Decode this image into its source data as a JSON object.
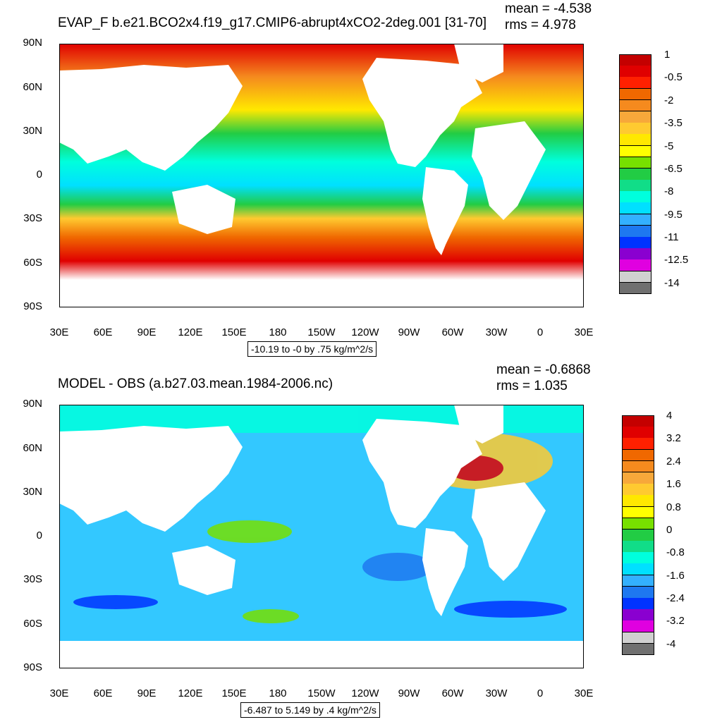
{
  "panels": [
    {
      "title": "EVAP_F b.e21.BCO2x4.f19_g17.CMIP6-abrupt4xCO2-2deg.001 [31-70]",
      "mean": "mean = -4.538",
      "rms": "rms = 4.978",
      "range_note": "-10.19 to -0 by .75 kg/m^2/s",
      "lat_ticks": [
        "90N",
        "60N",
        "30N",
        "0",
        "30S",
        "60S",
        "90S"
      ],
      "lon_ticks": [
        "30E",
        "60E",
        "90E",
        "120E",
        "150E",
        "180",
        "150W",
        "120W",
        "90W",
        "60W",
        "30W",
        "0",
        "30E"
      ],
      "colorbar_labels": [
        "1",
        "-0.5",
        "-2",
        "-3.5",
        "-5",
        "-6.5",
        "-8",
        "-9.5",
        "-11",
        "-12.5",
        "-14"
      ],
      "colorbar_colors": [
        "#c40000",
        "#e00000",
        "#ff2000",
        "#f06800",
        "#f58a1e",
        "#f7a83a",
        "#ffca30",
        "#ffe800",
        "#ffff00",
        "#77e000",
        "#22cc44",
        "#11dd88",
        "#00ffdd",
        "#00e0ff",
        "#33b0ff",
        "#1e78f0",
        "#0033ff",
        "#8a00d0",
        "#e000e0",
        "#d0d0d0",
        "#707070"
      ]
    },
    {
      "title": "MODEL - OBS (a.b27.03.mean.1984-2006.nc)",
      "mean": "mean = -0.6868",
      "rms": "rms = 1.035",
      "range_note": "-6.487 to 5.149 by .4 kg/m^2/s",
      "lat_ticks": [
        "90N",
        "60N",
        "30N",
        "0",
        "30S",
        "60S",
        "90S"
      ],
      "lon_ticks": [
        "30E",
        "60E",
        "90E",
        "120E",
        "150E",
        "180",
        "150W",
        "120W",
        "90W",
        "60W",
        "30W",
        "0",
        "30E"
      ],
      "colorbar_labels": [
        "4",
        "3.2",
        "2.4",
        "1.6",
        "0.8",
        "0",
        "-0.8",
        "-1.6",
        "-2.4",
        "-3.2",
        "-4"
      ],
      "colorbar_colors": [
        "#c40000",
        "#e00000",
        "#ff2000",
        "#f06800",
        "#f58a1e",
        "#f7a83a",
        "#ffca30",
        "#ffe800",
        "#ffff00",
        "#77e000",
        "#22cc44",
        "#11dd88",
        "#00ffdd",
        "#00e0ff",
        "#33b0ff",
        "#1e78f0",
        "#0033ff",
        "#8a00d0",
        "#e000e0",
        "#d0d0d0",
        "#707070"
      ]
    }
  ]
}
